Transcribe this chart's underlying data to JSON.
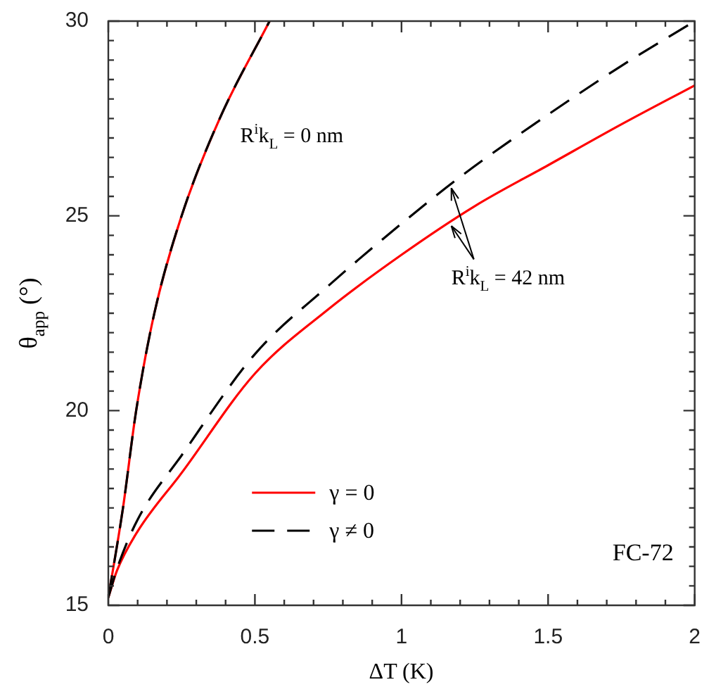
{
  "chart_data": {
    "type": "line",
    "xlabel": "ΔT (K)",
    "ylabel": "θ$_{app}$ (°)",
    "xlim": [
      0,
      2
    ],
    "ylim": [
      15,
      30
    ],
    "xticks": [
      0,
      {
        "value": 0.1,
        "label": null
      },
      {
        "value": 0.2,
        "label": null
      },
      {
        "value": 0.3,
        "label": null
      },
      {
        "value": 0.4,
        "label": null
      },
      0.5,
      {
        "value": 0.6,
        "label": null
      },
      {
        "value": 0.7,
        "label": null
      },
      {
        "value": 0.8,
        "label": null
      },
      {
        "value": 0.9,
        "label": null
      },
      1,
      {
        "value": 1.1,
        "label": null
      },
      {
        "value": 1.2,
        "label": null
      },
      {
        "value": 1.3,
        "label": null
      },
      {
        "value": 1.4,
        "label": null
      },
      1.5,
      {
        "value": 1.6,
        "label": null
      },
      {
        "value": 1.7,
        "label": null
      },
      {
        "value": 1.8,
        "label": null
      },
      {
        "value": 1.9,
        "label": null
      },
      2
    ],
    "yticks": [
      15,
      {
        "value": 15.5,
        "label": null
      },
      {
        "value": 16,
        "label": null
      },
      {
        "value": 16.5,
        "label": null
      },
      {
        "value": 17,
        "label": null
      },
      {
        "value": 17.5,
        "label": null
      },
      {
        "value": 18,
        "label": null
      },
      {
        "value": 18.5,
        "label": null
      },
      {
        "value": 19,
        "label": null
      },
      {
        "value": 19.5,
        "label": null
      },
      20,
      {
        "value": 20.5,
        "label": null
      },
      {
        "value": 21,
        "label": null
      },
      {
        "value": 21.5,
        "label": null
      },
      {
        "value": 22,
        "label": null
      },
      {
        "value": 22.5,
        "label": null
      },
      {
        "value": 23,
        "label": null
      },
      {
        "value": 23.5,
        "label": null
      },
      {
        "value": 24,
        "label": null
      },
      {
        "value": 24.5,
        "label": null
      },
      25,
      {
        "value": 25.5,
        "label": null
      },
      {
        "value": 26,
        "label": null
      },
      {
        "value": 26.5,
        "label": null
      },
      {
        "value": 27,
        "label": null
      },
      {
        "value": 27.5,
        "label": null
      },
      {
        "value": 28,
        "label": null
      },
      {
        "value": 28.5,
        "label": null
      },
      {
        "value": 29,
        "label": null
      },
      {
        "value": 29.5,
        "label": null
      },
      30
    ],
    "grid": false,
    "legend": "bottom",
    "marker": "none",
    "series": [
      {
        "name": "γ = 0",
        "color": "#ff0000",
        "line_style": "solid",
        "x": [
          0,
          0.05,
          0.095,
          0.157,
          0.25,
          0.38,
          0.55
        ],
        "values": [
          15.2,
          17.5,
          20,
          22.5,
          25,
          27.5,
          30
        ]
      },
      {
        "name": "γ ≠ 0",
        "color": "#000000",
        "line_style": "dashed",
        "x": [
          0,
          0.05,
          0.095,
          0.157,
          0.25,
          0.38,
          0.55
        ],
        "values": [
          15.2,
          17.5,
          20,
          22.5,
          25,
          27.5,
          30
        ]
      },
      {
        "color": "#ff0000",
        "line_style": "solid",
        "x": [
          0,
          0.03,
          0.1,
          0.25,
          0.5,
          0.75,
          1,
          1.25,
          1.5,
          1.75,
          2
        ],
        "values": [
          15.2,
          15.9,
          16.9,
          18.4,
          20.95,
          22.6,
          24,
          25.25,
          26.3,
          27.35,
          28.35
        ]
      },
      {
        "color": "#000000",
        "line_style": "dashed",
        "x": [
          0,
          0.03,
          0.1,
          0.25,
          0.5,
          0.75,
          1,
          1.2,
          1.5,
          1.75,
          2
        ],
        "values": [
          15.2,
          15.95,
          17.2,
          18.85,
          21.45,
          23.2,
          24.8,
          26,
          27.6,
          28.85,
          30
        ]
      }
    ],
    "annotations": [
      "R$^{i}$k$_{L}$ = 0 nm",
      {
        "text": "R$^{i}$k$_{L}$ = 42 nm",
        "x": 1.17,
        "y": 25.8
      },
      "FC-72"
    ]
  }
}
